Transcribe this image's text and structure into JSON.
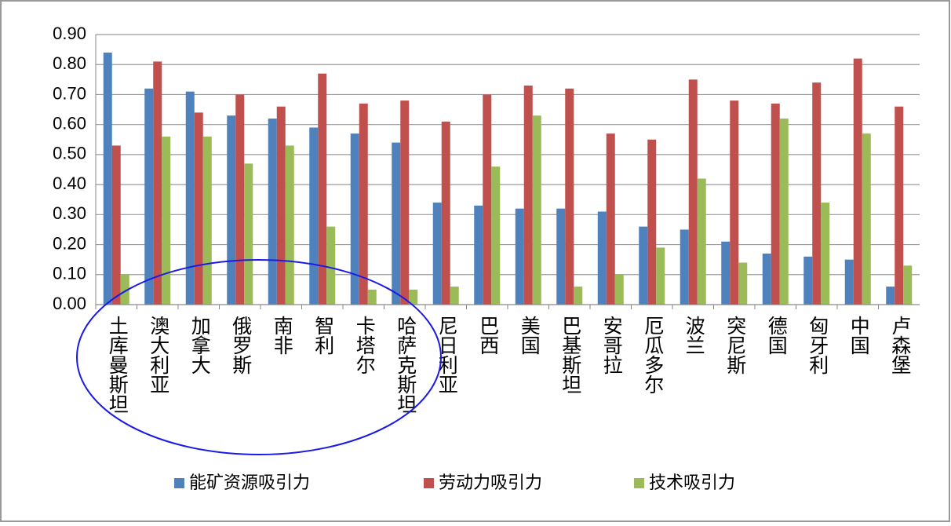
{
  "chart_data": {
    "type": "bar",
    "categories": [
      "土库曼斯坦",
      "澳大利亚",
      "加拿大",
      "俄罗斯",
      "南非",
      "智利",
      "卡塔尔",
      "哈萨克斯坦",
      "尼日利亚",
      "巴西",
      "美国",
      "巴基斯坦",
      "安哥拉",
      "厄瓜多尔",
      "波兰",
      "突尼斯",
      "德国",
      "匈牙利",
      "中国",
      "卢森堡"
    ],
    "series": [
      {
        "name": "能矿资源吸引力",
        "color": "#4f81bd",
        "values": [
          0.84,
          0.72,
          0.71,
          0.63,
          0.62,
          0.59,
          0.57,
          0.54,
          0.34,
          0.33,
          0.32,
          0.32,
          0.31,
          0.26,
          0.25,
          0.21,
          0.17,
          0.16,
          0.15,
          0.06
        ]
      },
      {
        "name": "劳动力吸引力",
        "color": "#c0504d",
        "values": [
          0.53,
          0.81,
          0.64,
          0.7,
          0.66,
          0.77,
          0.67,
          0.68,
          0.61,
          0.7,
          0.73,
          0.72,
          0.57,
          0.55,
          0.75,
          0.68,
          0.67,
          0.74,
          0.82,
          0.66
        ]
      },
      {
        "name": "技术吸引力",
        "color": "#9bbb59",
        "values": [
          0.1,
          0.56,
          0.56,
          0.47,
          0.53,
          0.26,
          0.05,
          0.05,
          0.06,
          0.46,
          0.63,
          0.06,
          0.1,
          0.19,
          0.42,
          0.14,
          0.62,
          0.34,
          0.57,
          0.13
        ]
      }
    ],
    "ylim": [
      0,
      0.9
    ],
    "yticks": [
      {
        "value": 0,
        "label": "0.00"
      },
      {
        "value": 0.1,
        "label": "0.10"
      },
      {
        "value": 0.2,
        "label": "0.20"
      },
      {
        "value": 0.3,
        "label": "0.30"
      },
      {
        "value": 0.4,
        "label": "0.40"
      },
      {
        "value": 0.5,
        "label": "0.50"
      },
      {
        "value": 0.6,
        "label": "0.60"
      },
      {
        "value": 0.7,
        "label": "0.70"
      },
      {
        "value": 0.8,
        "label": "0.80"
      },
      {
        "value": 0.9,
        "label": "0.90"
      }
    ],
    "grid": true,
    "legend": "bottom"
  }
}
